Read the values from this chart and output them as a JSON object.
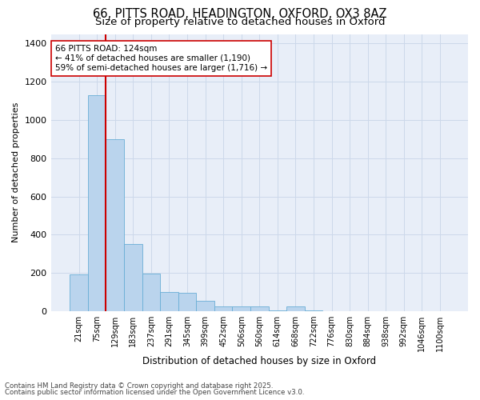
{
  "title1": "66, PITTS ROAD, HEADINGTON, OXFORD, OX3 8AZ",
  "title2": "Size of property relative to detached houses in Oxford",
  "xlabel": "Distribution of detached houses by size in Oxford",
  "ylabel": "Number of detached properties",
  "categories": [
    "21sqm",
    "75sqm",
    "129sqm",
    "183sqm",
    "237sqm",
    "291sqm",
    "345sqm",
    "399sqm",
    "452sqm",
    "506sqm",
    "560sqm",
    "614sqm",
    "668sqm",
    "722sqm",
    "776sqm",
    "830sqm",
    "884sqm",
    "938sqm",
    "992sqm",
    "1046sqm",
    "1100sqm"
  ],
  "values": [
    190,
    1130,
    900,
    350,
    195,
    100,
    95,
    55,
    25,
    25,
    25,
    5,
    25,
    5,
    0,
    0,
    0,
    0,
    0,
    0,
    0
  ],
  "bar_color": "#bad4ed",
  "bar_edge_color": "#6aaed6",
  "vline_color": "#cc0000",
  "annotation_title": "66 PITTS ROAD: 124sqm",
  "annotation_line1": "← 41% of detached houses are smaller (1,190)",
  "annotation_line2": "59% of semi-detached houses are larger (1,716) →",
  "ylim": [
    0,
    1450
  ],
  "yticks": [
    0,
    200,
    400,
    600,
    800,
    1000,
    1200,
    1400
  ],
  "grid_color": "#ccd8ea",
  "bg_color": "#e8eef8",
  "footnote1": "Contains HM Land Registry data © Crown copyright and database right 2025.",
  "footnote2": "Contains public sector information licensed under the Open Government Licence v3.0.",
  "title1_fontsize": 10.5,
  "title2_fontsize": 9.5,
  "xlabel_fontsize": 8.5,
  "ylabel_fontsize": 8,
  "annot_fontsize": 7.5,
  "tick_fontsize": 7,
  "ytick_fontsize": 8,
  "footnote_fontsize": 6.2
}
